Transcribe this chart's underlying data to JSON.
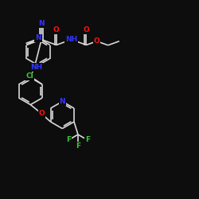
{
  "background": "#0d0d0d",
  "bond_color": "#d8d8d8",
  "bond_width": 1.2,
  "atom_colors": {
    "N": "#3333ff",
    "O": "#ff1111",
    "Cl": "#33cc33",
    "F": "#33cc33",
    "C": "#d8d8d8"
  },
  "figsize": [
    2.5,
    2.5
  ],
  "dpi": 100
}
